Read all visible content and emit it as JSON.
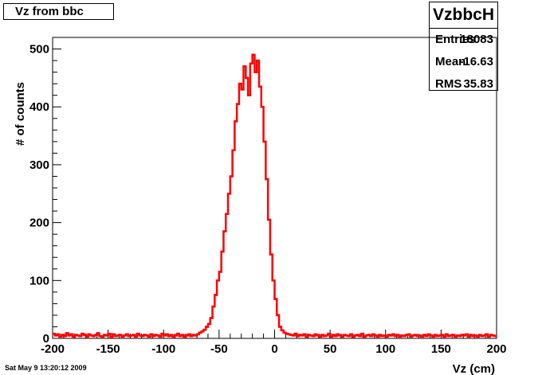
{
  "title": "Vz from bbc",
  "stats": {
    "name": "VzbbcH",
    "rows": [
      {
        "label": "Entries",
        "value": "18083"
      },
      {
        "label": "Mean",
        "value": "-16.63"
      },
      {
        "label": "RMS",
        "value": "35.83"
      }
    ]
  },
  "footer": {
    "date": "Sat May  9 13:20:12 2009"
  },
  "colors": {
    "histogram": "#ff0000",
    "axis": "#000000"
  },
  "chart_data": {
    "type": "histogram",
    "title": "Vz from bbc",
    "xlabel": "Vz (cm)",
    "ylabel": "# of counts",
    "xlim": [
      -200,
      200
    ],
    "ylim": [
      0,
      520
    ],
    "xticks": [
      -200,
      -150,
      -100,
      -50,
      0,
      50,
      100,
      150,
      200
    ],
    "yticks": [
      0,
      100,
      200,
      300,
      400,
      500
    ],
    "xtick_labels": [
      "-200",
      "-150",
      "-100",
      "-50",
      "0",
      "50",
      "100",
      "150",
      "200"
    ],
    "ytick_labels": [
      "0",
      "100",
      "200",
      "300",
      "400",
      "500"
    ],
    "grid": false,
    "legend": "none",
    "bin_width": 2,
    "x": [
      -200,
      -198,
      -196,
      -194,
      -192,
      -190,
      -188,
      -186,
      -184,
      -182,
      -180,
      -178,
      -176,
      -174,
      -172,
      -170,
      -168,
      -166,
      -164,
      -162,
      -160,
      -158,
      -156,
      -154,
      -152,
      -150,
      -148,
      -146,
      -144,
      -142,
      -140,
      -138,
      -136,
      -134,
      -132,
      -130,
      -128,
      -126,
      -124,
      -122,
      -120,
      -118,
      -116,
      -114,
      -112,
      -110,
      -108,
      -106,
      -104,
      -102,
      -100,
      -98,
      -96,
      -94,
      -92,
      -90,
      -88,
      -86,
      -84,
      -82,
      -80,
      -78,
      -76,
      -74,
      -72,
      -70,
      -68,
      -66,
      -64,
      -62,
      -60,
      -58,
      -56,
      -54,
      -52,
      -50,
      -48,
      -46,
      -44,
      -42,
      -40,
      -38,
      -36,
      -34,
      -32,
      -30,
      -28,
      -26,
      -24,
      -22,
      -20,
      -18,
      -16,
      -14,
      -12,
      -10,
      -8,
      -6,
      -4,
      -2,
      0,
      2,
      4,
      6,
      8,
      10,
      12,
      14,
      16,
      18,
      20,
      22,
      24,
      26,
      28,
      30,
      32,
      34,
      36,
      38,
      40,
      42,
      44,
      46,
      48,
      50,
      52,
      54,
      56,
      58,
      60,
      62,
      64,
      66,
      68,
      70,
      72,
      74,
      76,
      78,
      80,
      82,
      84,
      86,
      88,
      90,
      92,
      94,
      96,
      98,
      100,
      102,
      104,
      106,
      108,
      110,
      112,
      114,
      116,
      118,
      120,
      122,
      124,
      126,
      128,
      130,
      132,
      134,
      136,
      138,
      140,
      142,
      144,
      146,
      148,
      150,
      152,
      154,
      156,
      158,
      160,
      162,
      164,
      166,
      168,
      170,
      172,
      174,
      176,
      178,
      180,
      182,
      184,
      186,
      188,
      190,
      192,
      194,
      196,
      198
    ],
    "values": [
      8,
      5,
      7,
      3,
      6,
      4,
      9,
      5,
      7,
      3,
      6,
      5,
      4,
      8,
      6,
      3,
      7,
      5,
      4,
      6,
      9,
      4,
      3,
      6,
      5,
      8,
      2,
      7,
      4,
      5,
      6,
      3,
      5,
      7,
      4,
      5,
      6,
      3,
      8,
      5,
      4,
      6,
      5,
      3,
      7,
      4,
      6,
      5,
      3,
      8,
      5,
      7,
      4,
      6,
      3,
      5,
      8,
      4,
      6,
      3,
      5,
      7,
      4,
      6,
      5,
      7,
      10,
      12,
      15,
      20,
      25,
      35,
      55,
      75,
      100,
      115,
      150,
      185,
      215,
      250,
      280,
      325,
      375,
      405,
      440,
      430,
      470,
      450,
      420,
      475,
      490,
      460,
      480,
      435,
      400,
      340,
      275,
      205,
      145,
      100,
      68,
      40,
      20,
      14,
      10,
      8,
      7,
      6,
      5,
      8,
      4,
      6,
      5,
      7,
      3,
      6,
      5,
      4,
      7,
      5,
      3,
      6,
      4,
      5,
      8,
      3,
      6,
      4,
      7,
      5,
      3,
      6,
      5,
      4,
      7,
      3,
      5,
      6,
      4,
      8,
      3,
      5,
      6,
      4,
      7,
      5,
      3,
      6,
      4,
      5,
      3,
      6,
      5,
      7,
      4,
      6,
      3,
      5,
      4,
      6,
      7,
      3,
      5,
      6,
      4,
      5,
      3,
      6,
      4,
      7,
      5,
      3,
      6,
      4,
      5,
      6,
      3,
      7,
      4,
      5,
      6,
      3,
      5,
      4,
      6,
      5,
      7,
      3,
      6,
      4,
      5,
      3,
      6,
      4,
      5,
      7,
      3,
      6,
      5,
      4
    ]
  }
}
